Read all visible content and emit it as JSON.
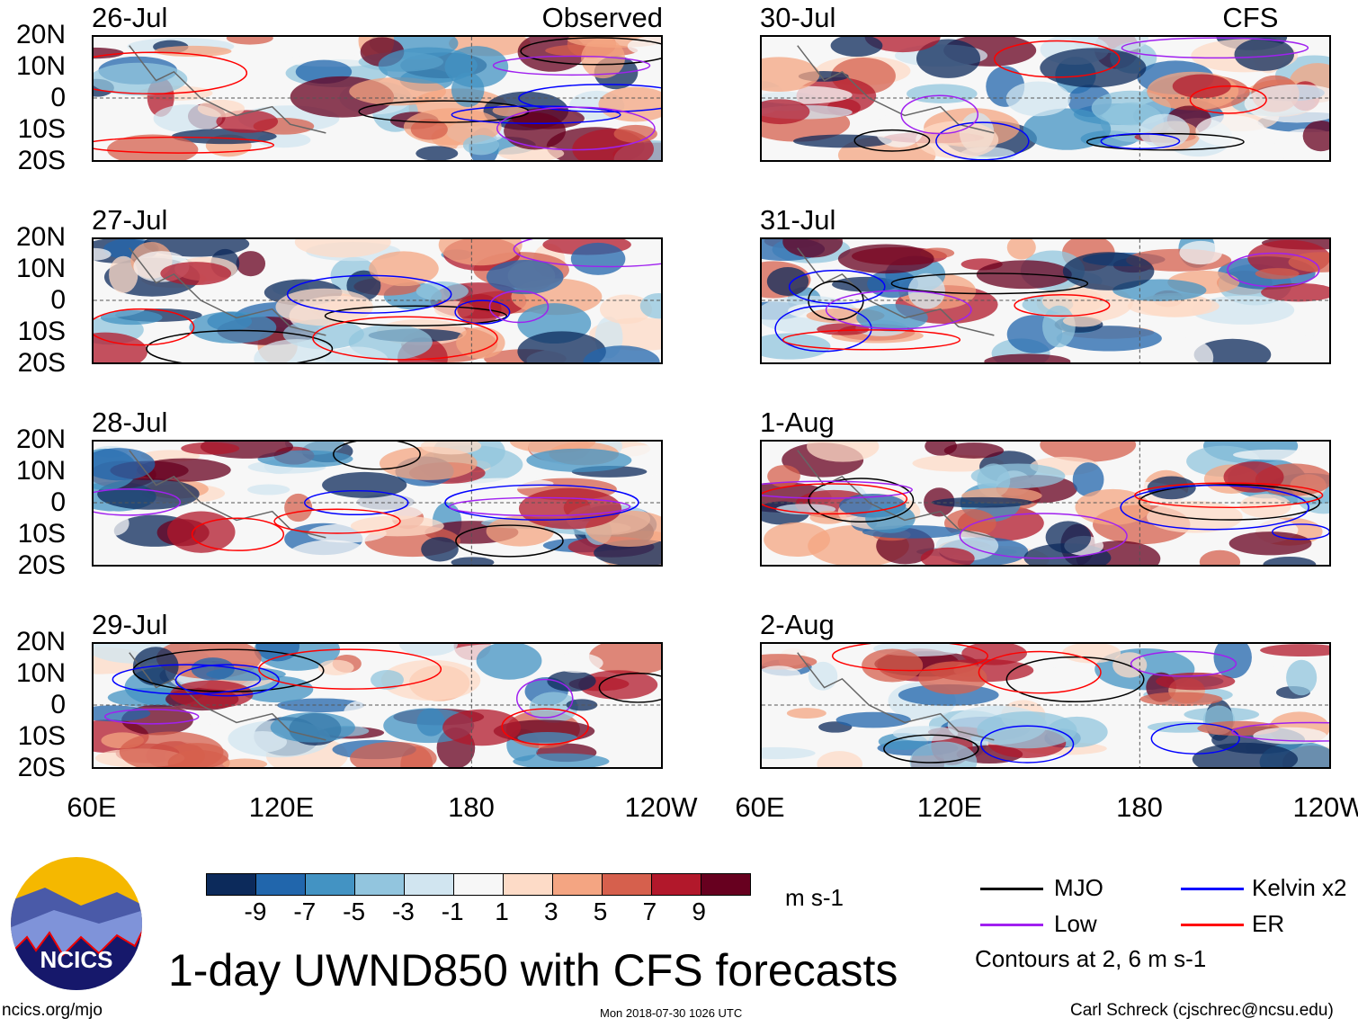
{
  "panels": [
    {
      "date": "26-Jul",
      "label": "Observed",
      "column": "observed"
    },
    {
      "date": "27-Jul",
      "label": "",
      "column": "observed"
    },
    {
      "date": "28-Jul",
      "label": "",
      "column": "observed"
    },
    {
      "date": "29-Jul",
      "label": "",
      "column": "observed"
    },
    {
      "date": "30-Jul",
      "label": "CFS Forecast",
      "column": "forecast"
    },
    {
      "date": "31-Jul",
      "label": "",
      "column": "forecast"
    },
    {
      "date": "1-Aug",
      "label": "",
      "column": "forecast"
    },
    {
      "date": "2-Aug",
      "label": "",
      "column": "forecast"
    }
  ],
  "lat_ticks": [
    "20N",
    "10N",
    "0",
    "10S",
    "20S"
  ],
  "lon_ticks": [
    "60E",
    "120E",
    "180",
    "120W"
  ],
  "colorbar": {
    "colors": [
      "#0c2a5b",
      "#2166ac",
      "#4393c3",
      "#92c5de",
      "#d1e5f0",
      "#f7f7f7",
      "#fddbc7",
      "#f4a582",
      "#d6604d",
      "#b2182b",
      "#67001f"
    ],
    "labels": [
      "-9",
      "-7",
      "-5",
      "-3",
      "-1",
      "1",
      "3",
      "5",
      "7",
      "9"
    ],
    "units": "m s-1"
  },
  "legend": {
    "items": [
      {
        "label": "MJO",
        "color": "#000000"
      },
      {
        "label": "Kelvin x2",
        "color": "#0000ff"
      },
      {
        "label": "Low",
        "color": "#a020f0"
      },
      {
        "label": "ER",
        "color": "#ff0000"
      }
    ],
    "note": "Contours at 2, 6 m s-1"
  },
  "title": "1-day UWND850 with CFS forecasts",
  "logo_text": "NCICS",
  "footer": {
    "left": "ncics.org/mjo",
    "center": "Mon 2018-07-30 1026 UTC",
    "right": "Carl Schreck (cjschrec@ncsu.edu)"
  }
}
